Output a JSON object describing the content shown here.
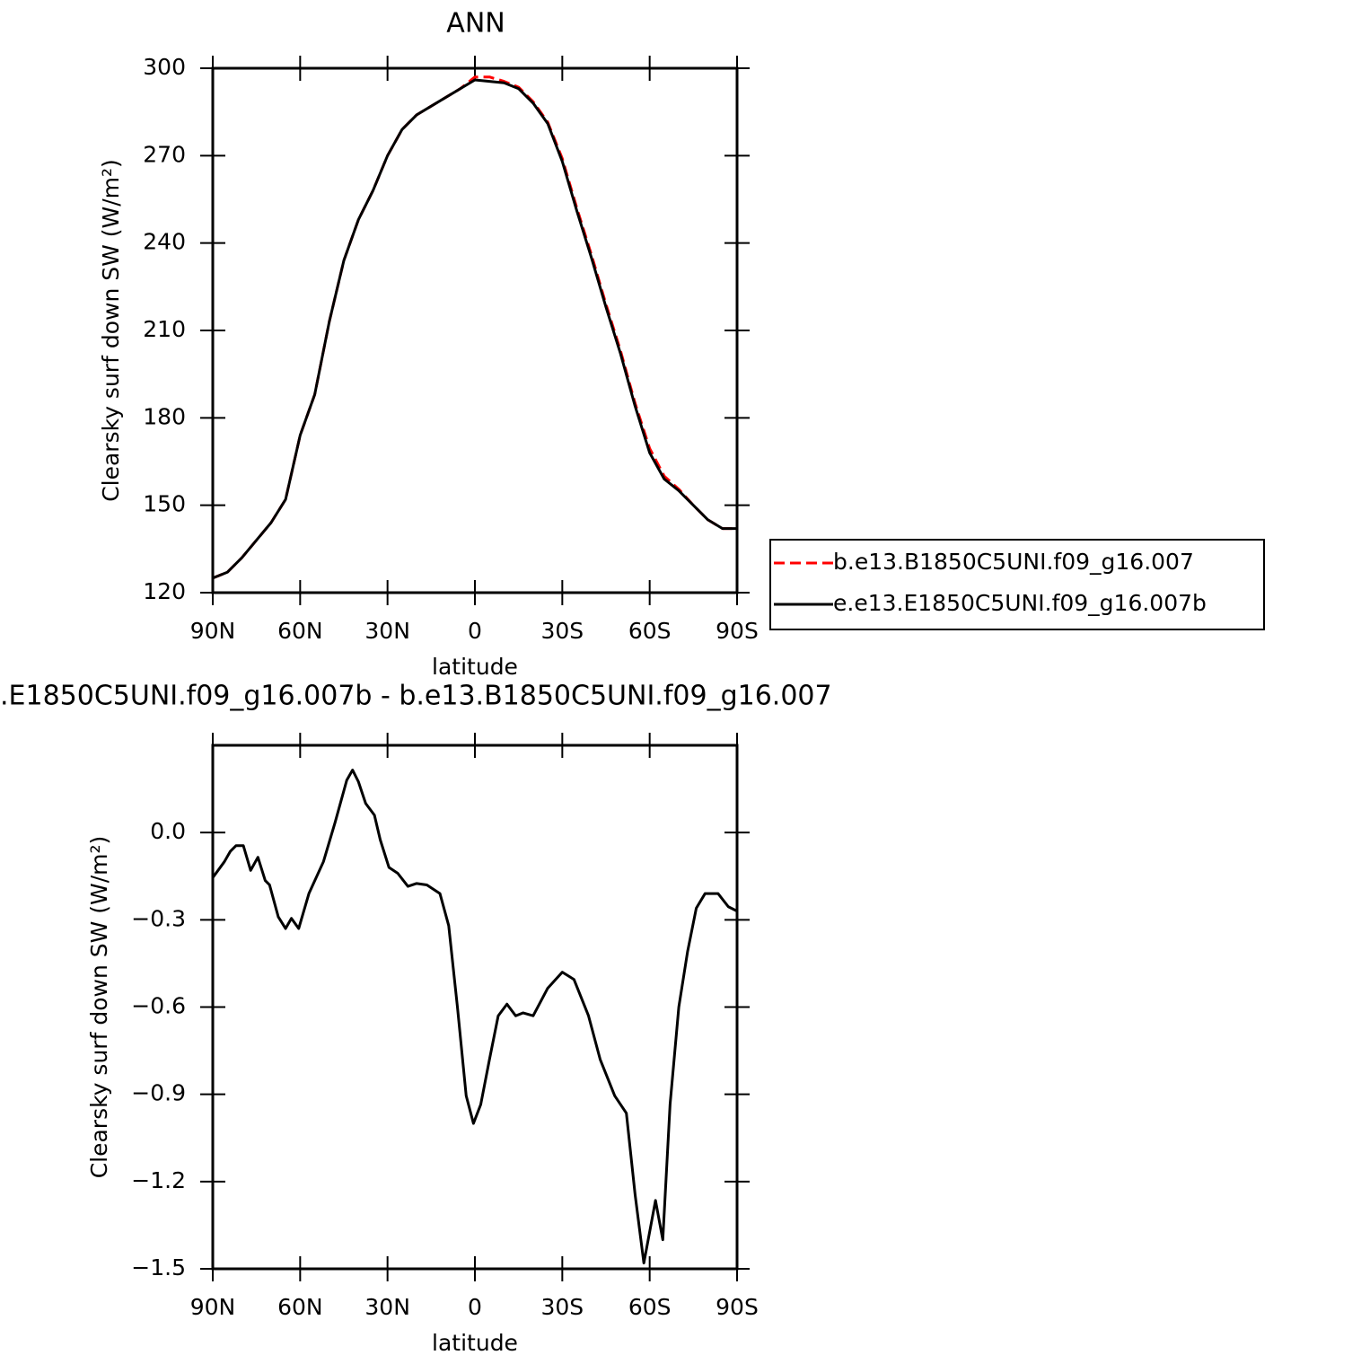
{
  "chart_data": [
    {
      "type": "line",
      "title": "ANN",
      "xlabel": "latitude",
      "ylabel": "Clearsky surf down SW (W/m²)",
      "x": [
        90,
        85,
        80,
        75,
        70,
        65,
        60,
        55,
        50,
        45,
        40,
        35,
        30,
        25,
        20,
        15,
        10,
        5,
        0,
        -5,
        -10,
        -15,
        -20,
        -25,
        -30,
        -35,
        -40,
        -45,
        -50,
        -55,
        -60,
        -65,
        -70,
        -75,
        -80,
        -85,
        -90
      ],
      "series": [
        {
          "name": "b.e13.B1850C5UNI.f09_g16.007",
          "color": "#ff0000",
          "dashed": true,
          "values": [
            125,
            127,
            132,
            138,
            144,
            152,
            174,
            188,
            213,
            234,
            248,
            258,
            270,
            279,
            284,
            287,
            290,
            293,
            297,
            297,
            295.5,
            293.5,
            288.5,
            281.5,
            269,
            252,
            236,
            219,
            203,
            185,
            169.5,
            160,
            155.5,
            150,
            145,
            142,
            142
          ]
        },
        {
          "name": "e.e13.E1850C5UNI.f09_g16.007b",
          "color": "#000000",
          "dashed": false,
          "values": [
            125,
            127,
            132,
            138,
            144,
            152,
            174,
            188,
            213,
            234,
            248,
            258,
            270,
            279,
            284,
            287,
            290,
            293,
            296,
            295.5,
            295,
            293,
            288,
            281,
            268,
            251,
            235,
            218,
            202,
            184,
            168,
            159,
            155,
            150,
            145,
            142,
            142
          ]
        }
      ],
      "xlim": [
        90,
        -90
      ],
      "xticks": [
        {
          "value": 90,
          "label": "90N"
        },
        {
          "value": 60,
          "label": "60N"
        },
        {
          "value": 30,
          "label": "30N"
        },
        0,
        {
          "value": -30,
          "label": "30S"
        },
        {
          "value": -60,
          "label": "60S"
        },
        {
          "value": -90,
          "label": "90S"
        }
      ],
      "ylim": [
        120,
        300
      ],
      "yticks": [
        120,
        150,
        180,
        210,
        240,
        270,
        300
      ],
      "legend": "right"
    },
    {
      "type": "line",
      "title": ".E1850C5UNI.f09_g16.007b - b.e13.B1850C5UNI.f09_g16.007",
      "xlabel": "latitude",
      "ylabel": "Clearsky surf down SW (W/m²)",
      "x": [
        90,
        86,
        84,
        82,
        79.5,
        77,
        74.5,
        72,
        70.5,
        67.5,
        65,
        63,
        60.5,
        57,
        52,
        48,
        44,
        42,
        40,
        37.5,
        34.5,
        32.5,
        29.5,
        26.5,
        23,
        20,
        16.5,
        12,
        9,
        6,
        3,
        0.5,
        -2,
        -5,
        -8,
        -11,
        -14,
        -16.5,
        -20,
        -25,
        -30,
        -34,
        -39,
        -43,
        -48,
        -52,
        -55,
        -58,
        -62,
        -64.5,
        -67,
        -70,
        -73,
        -76,
        -79,
        -83.5,
        -87,
        -90
      ],
      "series": [
        {
          "color": "#000000",
          "dashed": false,
          "values": [
            -0.155,
            -0.1,
            -0.065,
            -0.045,
            -0.045,
            -0.13,
            -0.085,
            -0.165,
            -0.18,
            -0.29,
            -0.33,
            -0.295,
            -0.33,
            -0.21,
            -0.1,
            0.035,
            0.18,
            0.215,
            0.175,
            0.1,
            0.06,
            -0.025,
            -0.12,
            -0.14,
            -0.185,
            -0.175,
            -0.18,
            -0.21,
            -0.32,
            -0.6,
            -0.905,
            -1.0,
            -0.935,
            -0.78,
            -0.63,
            -0.59,
            -0.63,
            -0.62,
            -0.63,
            -0.535,
            -0.48,
            -0.505,
            -0.63,
            -0.78,
            -0.905,
            -0.965,
            -1.245,
            -1.48,
            -1.265,
            -1.4,
            -0.935,
            -0.6,
            -0.41,
            -0.26,
            -0.21,
            -0.21,
            -0.255,
            -0.27
          ]
        }
      ],
      "xlim": [
        90,
        -90
      ],
      "xticks": [
        {
          "value": 90,
          "label": "90N"
        },
        {
          "value": 60,
          "label": "60N"
        },
        {
          "value": 30,
          "label": "30N"
        },
        0,
        {
          "value": -30,
          "label": "30S"
        },
        {
          "value": -60,
          "label": "60S"
        },
        {
          "value": -90,
          "label": "90S"
        }
      ],
      "ylim": [
        -1.5,
        0.3
      ],
      "yticks": [
        {
          "value": -1.5,
          "label": "−1.5"
        },
        {
          "value": -1.2,
          "label": "−1.2"
        },
        {
          "value": -0.9,
          "label": "−0.9"
        },
        {
          "value": -0.6,
          "label": "−0.6"
        },
        {
          "value": -0.3,
          "label": "−0.3"
        },
        {
          "value": 0,
          "label": "0.0"
        }
      ]
    }
  ]
}
